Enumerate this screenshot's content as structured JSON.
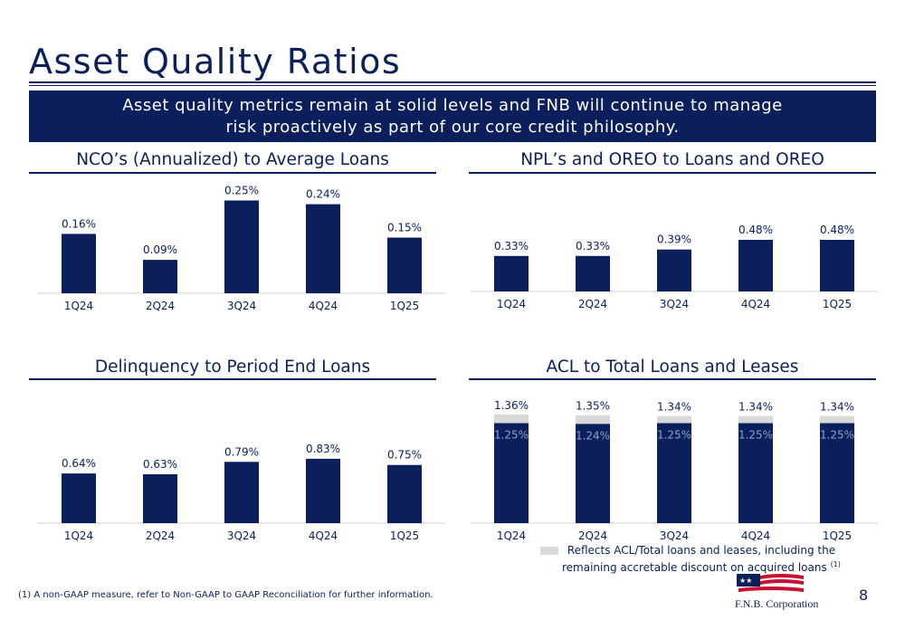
{
  "page": {
    "title": "Asset Quality Ratios",
    "banner_line1": "Asset quality metrics remain at solid levels and FNB will continue to manage",
    "banner_line2": "risk proactively as part of our core credit philosophy.",
    "footnote": "(1) A non-GAAP measure, refer to Non-GAAP to GAAP Reconciliation for further information.",
    "page_number": "8",
    "logo_text": "F.N.B. Corporation",
    "colors": {
      "primary": "#0a1f5c",
      "secondary": "#d9d9d9"
    }
  },
  "legend": {
    "acl_line1": "Reflects ACL/Total loans and leases, including the",
    "acl_line2": "remaining accretable discount on acquired loans",
    "acl_sup": "(1)"
  },
  "chart_data": [
    {
      "id": "nco",
      "type": "bar",
      "title": "NCO’s (Annualized) to Average Loans",
      "categories": [
        "1Q24",
        "2Q24",
        "3Q24",
        "4Q24",
        "1Q25"
      ],
      "values": [
        0.16,
        0.09,
        0.25,
        0.24,
        0.15
      ],
      "labels": [
        "0.16%",
        "0.09%",
        "0.25%",
        "0.24%",
        "0.15%"
      ],
      "ylim": [
        0,
        0.4
      ]
    },
    {
      "id": "npl",
      "type": "bar",
      "title": "NPL’s and OREO to Loans and OREO",
      "categories": [
        "1Q24",
        "2Q24",
        "3Q24",
        "4Q24",
        "1Q25"
      ],
      "values": [
        0.33,
        0.33,
        0.39,
        0.48,
        0.48
      ],
      "labels": [
        "0.33%",
        "0.33%",
        "0.39%",
        "0.48%",
        "0.48%"
      ],
      "ylim": [
        0,
        0.85
      ]
    },
    {
      "id": "delinquency",
      "type": "bar",
      "title": "Delinquency to Period End Loans",
      "categories": [
        "1Q24",
        "2Q24",
        "3Q24",
        "4Q24",
        "1Q25"
      ],
      "values": [
        0.64,
        0.63,
        0.79,
        0.83,
        0.75
      ],
      "labels": [
        "0.64%",
        "0.63%",
        "0.79%",
        "0.83%",
        "0.75%"
      ],
      "ylim": [
        0,
        1.4
      ]
    },
    {
      "id": "acl",
      "type": "bar",
      "title": "ACL to Total Loans and Leases",
      "categories": [
        "1Q24",
        "2Q24",
        "3Q24",
        "4Q24",
        "1Q25"
      ],
      "values": [
        1.25,
        1.24,
        1.25,
        1.25,
        1.25
      ],
      "labels": [
        "1.25%",
        "1.24%",
        "1.25%",
        "1.25%",
        "1.25%"
      ],
      "totals": [
        1.36,
        1.35,
        1.34,
        1.34,
        1.34
      ],
      "total_labels": [
        "1.36%",
        "1.35%",
        "1.34%",
        "1.34%",
        "1.34%"
      ],
      "ylim": [
        0,
        1.55
      ]
    }
  ]
}
